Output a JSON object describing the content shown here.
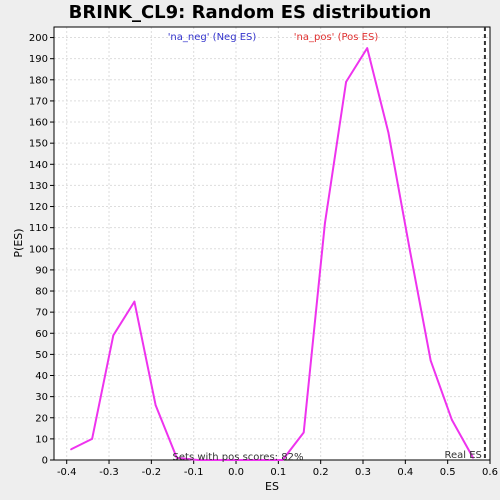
{
  "chart_data": {
    "type": "line",
    "title": "BRINK_CL9: Random ES distribution",
    "xlabel": "ES",
    "ylabel": "P(ES)",
    "xlim": [
      -0.43,
      0.6
    ],
    "ylim": [
      0,
      205
    ],
    "x_ticks": [
      -0.4,
      -0.3,
      -0.2,
      -0.1,
      0.0,
      0.1,
      0.2,
      0.3,
      0.4,
      0.5,
      0.6
    ],
    "x_tick_labels": [
      "-0.4",
      "-0.3",
      "-0.2",
      "-0.1",
      "0.0",
      "0.1",
      "0.2",
      "0.3",
      "0.4",
      "0.5",
      "0.6"
    ],
    "y_ticks": [
      0,
      10,
      20,
      30,
      40,
      50,
      60,
      70,
      80,
      90,
      100,
      110,
      120,
      130,
      140,
      150,
      160,
      170,
      180,
      190,
      200
    ],
    "grid": true,
    "legend": [
      {
        "text": "'na_neg' (Neg ES)",
        "color": "#3333cc"
      },
      {
        "text": "'na_pos' (Pos ES)",
        "color": "#e03030"
      }
    ],
    "series": [
      {
        "color": "#ee33ee",
        "points": [
          [
            -0.39,
            5
          ],
          [
            -0.34,
            10
          ],
          [
            -0.29,
            59
          ],
          [
            -0.24,
            75
          ],
          [
            -0.19,
            26
          ],
          [
            -0.14,
            1
          ],
          [
            -0.09,
            0
          ],
          [
            0.11,
            0
          ],
          [
            0.16,
            13
          ],
          [
            0.21,
            112
          ],
          [
            0.26,
            179
          ],
          [
            0.31,
            195
          ],
          [
            0.36,
            155
          ],
          [
            0.41,
            100
          ],
          [
            0.46,
            47
          ],
          [
            0.51,
            19
          ],
          [
            0.56,
            1
          ]
        ]
      }
    ],
    "real_es": {
      "x": 0.588,
      "label": "Real ES",
      "color": "#333333"
    },
    "annotation": "Sets with pos scores: 82%"
  },
  "colors": {
    "background": "#eeeeee",
    "plot_background": "#ffffff",
    "grid": "#dddddd",
    "line": "#ee33ee"
  }
}
